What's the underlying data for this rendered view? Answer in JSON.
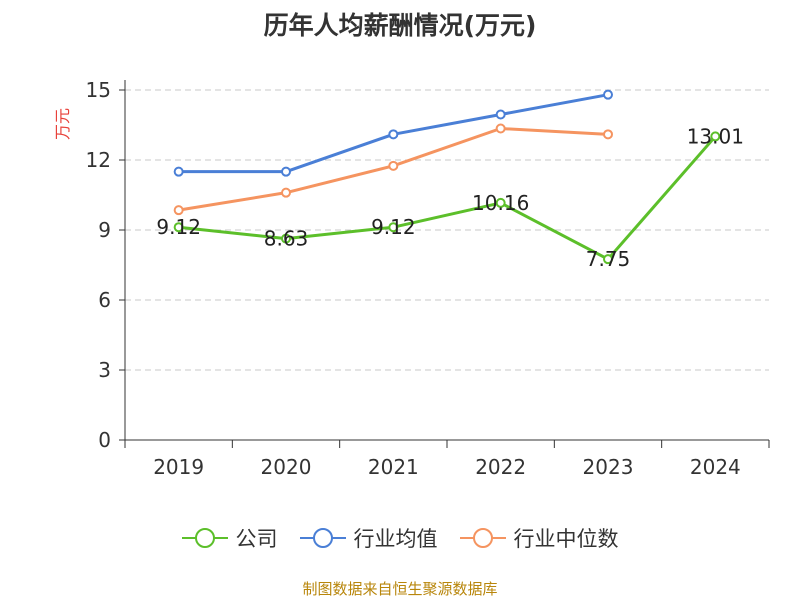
{
  "chart_data": {
    "type": "line",
    "title": "历年人均薪酬情况(万元)",
    "ylabel": "万元",
    "categories": [
      "2019",
      "2020",
      "2021",
      "2022",
      "2023",
      "2024"
    ],
    "ylim": [
      0,
      15
    ],
    "yticks": [
      0,
      3,
      6,
      9,
      12,
      15
    ],
    "grid": true,
    "legend_position": "bottom",
    "series": [
      {
        "name": "公司",
        "color": "#5cbf2a",
        "values": [
          9.12,
          8.63,
          9.12,
          10.16,
          7.75,
          13.01
        ],
        "labels": [
          "9.12",
          "8.63",
          "9.12",
          "10.16",
          "7.75",
          "13.01"
        ]
      },
      {
        "name": "行业均值",
        "color": "#4a7fd6",
        "values": [
          11.5,
          11.5,
          13.1,
          13.95,
          14.8,
          null
        ]
      },
      {
        "name": "行业中位数",
        "color": "#f59460",
        "values": [
          9.85,
          10.6,
          11.75,
          13.35,
          13.1,
          null
        ]
      }
    ]
  },
  "source": "制图数据来自恒生聚源数据库",
  "colors": {
    "ylabel": "#e8413a"
  }
}
